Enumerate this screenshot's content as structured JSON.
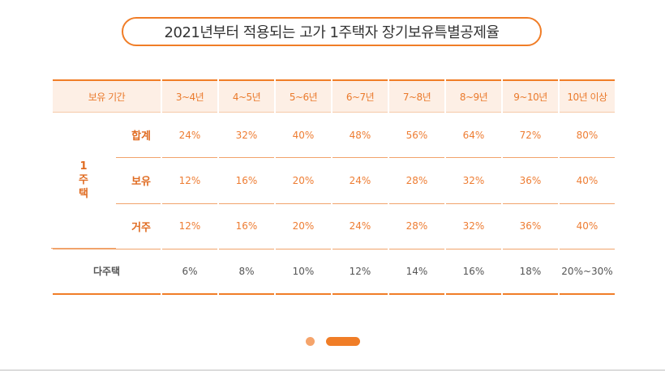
{
  "title": "2021년부터 적용되는 고가 1주택자 장기보유특별공제율",
  "table": {
    "header_label": "보유 기간",
    "periods": [
      "3~4년",
      "4~5년",
      "5~6년",
      "6~7년",
      "7~8년",
      "8~9년",
      "9~10년",
      "10년 이상"
    ],
    "group_label_chars": [
      "1",
      "주",
      "택"
    ],
    "rows": [
      {
        "label": "합계",
        "values": [
          "24%",
          "32%",
          "40%",
          "48%",
          "56%",
          "64%",
          "72%",
          "80%"
        ]
      },
      {
        "label": "보유",
        "values": [
          "12%",
          "16%",
          "20%",
          "24%",
          "28%",
          "32%",
          "36%",
          "40%"
        ]
      },
      {
        "label": "거주",
        "values": [
          "12%",
          "16%",
          "20%",
          "24%",
          "28%",
          "32%",
          "36%",
          "40%"
        ]
      }
    ],
    "multi": {
      "label": "다주택",
      "values": [
        "6%",
        "8%",
        "10%",
        "12%",
        "14%",
        "16%",
        "18%",
        "20%~30%"
      ]
    }
  },
  "colors": {
    "accent": "#f07d27",
    "header_bg": "#fdefe5",
    "text_orange": "#ee7d33"
  },
  "pagination": {
    "active_index": 1,
    "count": 2
  }
}
